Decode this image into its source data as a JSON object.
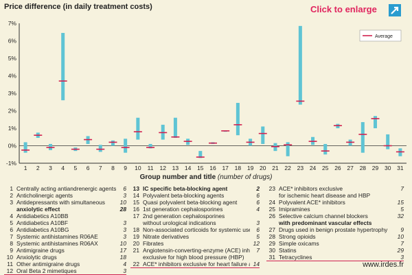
{
  "header": {
    "title": "Price difference (in daily treatment costs)",
    "enlarge_label": "Click to enlarge",
    "enlarge_icon": "expand-arrow-icon"
  },
  "colors": {
    "background": "#f6f2de",
    "bar": "#5fc4d4",
    "average": "#d0204f",
    "accent": "#e0245e"
  },
  "chart_data": {
    "type": "bar",
    "subtype": "floating-range-with-average",
    "title": "Price difference (in daily treatment costs)",
    "xlabel": "Group number and title",
    "xlabel_note": "(number of drugs)",
    "ylabel": "",
    "ylim": [
      -1,
      7
    ],
    "yticks": [
      "-1%",
      "0%",
      "1%",
      "2%",
      "3%",
      "4%",
      "5%",
      "6%",
      "7%"
    ],
    "grid": false,
    "legend": {
      "position": "top-right",
      "entries": [
        "Average"
      ]
    },
    "categories": [
      "1",
      "2",
      "3",
      "4",
      "5",
      "6",
      "7",
      "8",
      "9",
      "10",
      "11",
      "12",
      "13",
      "14",
      "15",
      "16",
      "17",
      "18",
      "19",
      "20",
      "21",
      "22",
      "23",
      "24",
      "25",
      "26",
      "27",
      "28",
      "29",
      "30",
      "31"
    ],
    "series": [
      {
        "name": "",
        "kind": "range",
        "low": [
          -0.4,
          0.45,
          -0.25,
          2.6,
          -0.3,
          0.1,
          -0.35,
          0.0,
          -0.4,
          0.35,
          -0.15,
          0.35,
          0.45,
          0.05,
          -0.7,
          0.1,
          0.8,
          0.6,
          0.0,
          0.1,
          -0.3,
          -0.6,
          2.35,
          0.05,
          -0.5,
          1.0,
          0.0,
          -0.4,
          1.0,
          -0.2,
          -0.6
        ],
        "high": [
          0.2,
          0.75,
          0.1,
          6.45,
          -0.1,
          0.55,
          0.05,
          0.3,
          0.4,
          1.6,
          0.1,
          1.2,
          1.6,
          0.4,
          -0.3,
          0.2,
          0.85,
          2.45,
          0.4,
          1.1,
          0.15,
          0.2,
          6.85,
          0.5,
          0.1,
          1.25,
          0.35,
          1.35,
          1.7,
          0.65,
          -0.15
        ]
      },
      {
        "name": "Average",
        "kind": "average",
        "values": [
          -0.25,
          0.6,
          -0.1,
          3.7,
          -0.2,
          0.35,
          -0.2,
          0.2,
          -0.1,
          0.8,
          -0.1,
          0.75,
          0.5,
          0.25,
          -0.65,
          0.15,
          0.85,
          1.2,
          0.2,
          0.7,
          -0.05,
          0.05,
          2.55,
          0.25,
          -0.3,
          1.15,
          0.2,
          0.65,
          1.55,
          0.0,
          -0.35
        ]
      }
    ]
  },
  "groups": [
    {
      "num": "1",
      "label": "Centrally acting antiandrenergic agents",
      "count": "6"
    },
    {
      "num": "2",
      "label": "Anticholinergic agents",
      "count": "3"
    },
    {
      "num": "3",
      "label": "Antidepressants with simultaneous",
      "count": "10"
    },
    {
      "num": "",
      "label": "anxiolytic effect",
      "count": "28",
      "bold": true
    },
    {
      "num": "4",
      "label": "Antidiabetics A10BB",
      "count": ""
    },
    {
      "num": "5",
      "label": "Antidiabetics A10BF",
      "count": "3"
    },
    {
      "num": "6",
      "label": "Antidiabetics A10BG",
      "count": "3"
    },
    {
      "num": "7",
      "label": "Systemic antihistamines R06AE",
      "count": "3"
    },
    {
      "num": "8",
      "label": "Systemic antihistamines R06AX",
      "count": "10"
    },
    {
      "num": "9",
      "label": "Antimigraine drugs",
      "count": "17"
    },
    {
      "num": "10",
      "label": "Anxiolytic drugs",
      "count": "18"
    },
    {
      "num": "11",
      "label": "Other antimigraine drugs",
      "count": "4"
    },
    {
      "num": "12",
      "label": "Oral Beta 2 mimetiques",
      "count": "3",
      "underline": true
    },
    {
      "num": "13",
      "label": "IC specific beta-blocking agent",
      "count": "2",
      "bold": true
    },
    {
      "num": "14",
      "label": "Polyvalent beta-blocking agents",
      "count": "6"
    },
    {
      "num": "15",
      "label": "Quasi polyvalent beta-blocking agent",
      "count": "6"
    },
    {
      "num": "16",
      "label": "1st generation cephalosporines",
      "count": "4"
    },
    {
      "num": "17",
      "label": "2nd generation cephalosporines",
      "count": ""
    },
    {
      "num": "",
      "label": "without urological indications",
      "count": "3"
    },
    {
      "num": "18",
      "label": "Non-associated corticoids for systemic use",
      "count": "6"
    },
    {
      "num": "19",
      "label": "Nitrate derivatives",
      "count": "5"
    },
    {
      "num": "20",
      "label": "Fibrates",
      "count": "12"
    },
    {
      "num": "21",
      "label": "Angiotensin-converting-enzyme (ACE) inhibitors",
      "count": "7"
    },
    {
      "num": "",
      "label": "exclusive for high blood pressure (HBP)",
      "count": ""
    },
    {
      "num": "22",
      "label": "ACE* inhibitors exclusive for heart failure and HBP",
      "count": "14",
      "underline": true
    },
    {
      "num": "22",
      "label": "ACE* inhibitors exclusive for heart failure and HBP",
      "count": "14"
    },
    {
      "num": "23",
      "label": "ACE* inhibitors exclusive",
      "count": "7"
    },
    {
      "num": "",
      "label": "for ischemic heart disease and HBP",
      "count": ""
    },
    {
      "num": "24",
      "label": "Polyvalent ACE* inhibitors",
      "count": "15"
    },
    {
      "num": "25",
      "label": "Imipramines",
      "count": "5"
    },
    {
      "num": "26",
      "label": "Selective calcium channel blockers",
      "count": "32"
    },
    {
      "num": "",
      "label": "with predominant vascular effects",
      "count": "",
      "bold": true
    },
    {
      "num": "27",
      "label": "Drugs used in benign prostate hypertrophy",
      "count": "9"
    },
    {
      "num": "28",
      "label": "Strong opioids",
      "count": "10"
    },
    {
      "num": "29",
      "label": "Simple oxicams",
      "count": "7"
    },
    {
      "num": "30",
      "label": "Statins",
      "count": "29"
    },
    {
      "num": "31",
      "label": "Tetracyclines",
      "count": "3",
      "underline": true
    }
  ],
  "footer": {
    "site": "www.irdes.fr"
  }
}
